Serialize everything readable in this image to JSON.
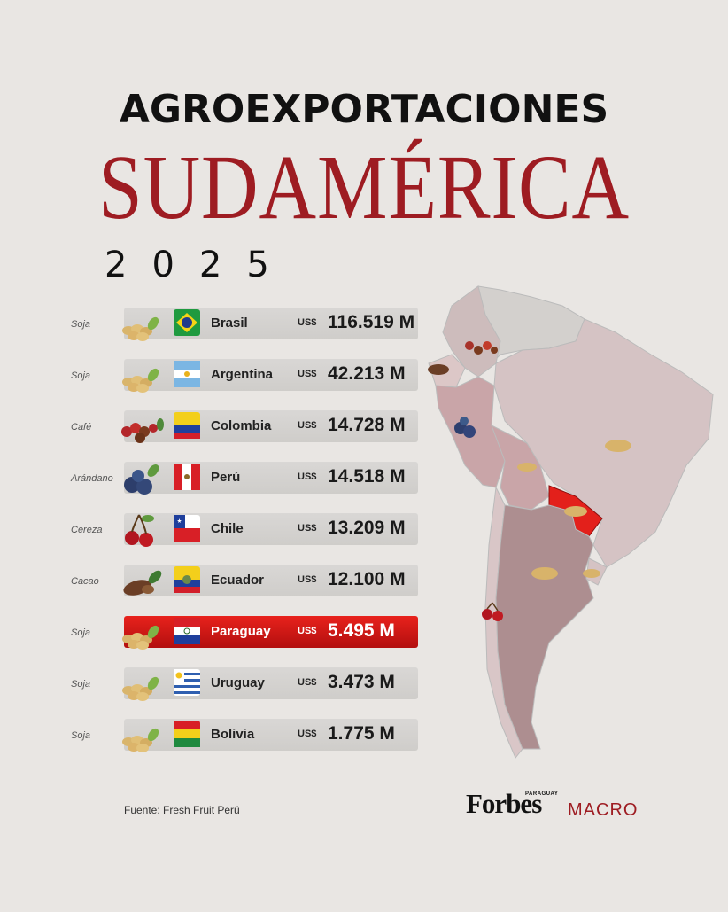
{
  "header": {
    "line1": "AGROEXPORTACIONES",
    "line2": "SUDAMÉRICA",
    "year": "2025"
  },
  "chart_data": {
    "type": "bar",
    "unit_prefix": "US$",
    "categories": [
      "Brasil",
      "Argentina",
      "Colombia",
      "Perú",
      "Chile",
      "Ecuador",
      "Paraguay",
      "Uruguay",
      "Bolivia"
    ],
    "products": [
      "Soja",
      "Soja",
      "Café",
      "Arándano",
      "Cereza",
      "Cacao",
      "Soja",
      "Soja",
      "Soja"
    ],
    "values": [
      116519,
      42213,
      14728,
      14518,
      13209,
      12100,
      5495,
      3473,
      1775
    ],
    "value_labels": [
      "116.519 M",
      "42.213 M",
      "14.728 M",
      "14.518 M",
      "13.209 M",
      "12.100 M",
      "5.495 M",
      "3.473 M",
      "1.775 M"
    ],
    "highlight": "Paraguay",
    "accent_color": "#9e1c22",
    "highlight_color": "#e3201b",
    "icons": [
      "soybean-icon",
      "soybean-icon",
      "coffee-icon",
      "blueberry-icon",
      "cherry-icon",
      "cacao-icon",
      "soybean-icon",
      "soybean-icon",
      "soybean-icon"
    ]
  },
  "footer": {
    "source": "Fuente: Fresh Fruit Perú",
    "brand": "Forbes",
    "brand_edition": "PARAGUAY",
    "brand_section": "MACRO"
  }
}
